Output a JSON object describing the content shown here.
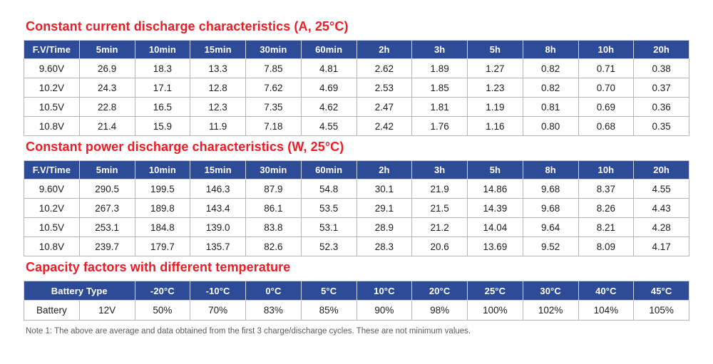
{
  "colors": {
    "title_red": "#ed1c24",
    "header_blue": "#2d4b96",
    "grid_gray": "#b5b5b5"
  },
  "note": "Note 1: The above are average and data obtained from the first 3 charge/discharge cycles. These are not minimum values.",
  "tables": [
    {
      "title": "Constant current discharge characteristics (A, 25°C)",
      "headers": [
        "F.V/Time",
        "5min",
        "10min",
        "15min",
        "30min",
        "60min",
        "2h",
        "3h",
        "5h",
        "8h",
        "10h",
        "20h"
      ],
      "header_spans": [
        1,
        1,
        1,
        1,
        1,
        1,
        1,
        1,
        1,
        1,
        1,
        1
      ],
      "rows": [
        [
          "9.60V",
          "26.9",
          "18.3",
          "13.3",
          "7.85",
          "4.81",
          "2.62",
          "1.89",
          "1.27",
          "0.82",
          "0.71",
          "0.38"
        ],
        [
          "10.2V",
          "24.3",
          "17.1",
          "12.8",
          "7.62",
          "4.69",
          "2.53",
          "1.85",
          "1.23",
          "0.82",
          "0.70",
          "0.37"
        ],
        [
          "10.5V",
          "22.8",
          "16.5",
          "12.3",
          "7.35",
          "4.62",
          "2.47",
          "1.81",
          "1.19",
          "0.81",
          "0.69",
          "0.36"
        ],
        [
          "10.8V",
          "21.4",
          "15.9",
          "11.9",
          "7.18",
          "4.55",
          "2.42",
          "1.76",
          "1.16",
          "0.80",
          "0.68",
          "0.35"
        ]
      ]
    },
    {
      "title": "Constant power discharge characteristics (W, 25°C)",
      "headers": [
        "F.V/Time",
        "5min",
        "10min",
        "15min",
        "30min",
        "60min",
        "2h",
        "3h",
        "5h",
        "8h",
        "10h",
        "20h"
      ],
      "header_spans": [
        1,
        1,
        1,
        1,
        1,
        1,
        1,
        1,
        1,
        1,
        1,
        1
      ],
      "rows": [
        [
          "9.60V",
          "290.5",
          "199.5",
          "146.3",
          "87.9",
          "54.8",
          "30.1",
          "21.9",
          "14.86",
          "9.68",
          "8.37",
          "4.55"
        ],
        [
          "10.2V",
          "267.3",
          "189.8",
          "143.4",
          "86.1",
          "53.5",
          "29.1",
          "21.5",
          "14.39",
          "9.68",
          "8.26",
          "4.43"
        ],
        [
          "10.5V",
          "253.1",
          "184.8",
          "139.0",
          "83.8",
          "53.1",
          "28.9",
          "21.2",
          "14.04",
          "9.64",
          "8.21",
          "4.28"
        ],
        [
          "10.8V",
          "239.7",
          "179.7",
          "135.7",
          "82.6",
          "52.3",
          "28.3",
          "20.6",
          "13.69",
          "9.52",
          "8.09",
          "4.17"
        ]
      ]
    },
    {
      "title": "Capacity factors with different temperature",
      "headers": [
        "Battery Type",
        "-20°C",
        "-10°C",
        "0°C",
        "5°C",
        "10°C",
        "20°C",
        "25°C",
        "30°C",
        "40°C",
        "45°C"
      ],
      "header_spans": [
        2,
        1,
        1,
        1,
        1,
        1,
        1,
        1,
        1,
        1,
        1
      ],
      "rows": [
        [
          "Battery",
          "12V",
          "50%",
          "70%",
          "83%",
          "85%",
          "90%",
          "98%",
          "100%",
          "102%",
          "104%",
          "105%"
        ]
      ]
    }
  ]
}
